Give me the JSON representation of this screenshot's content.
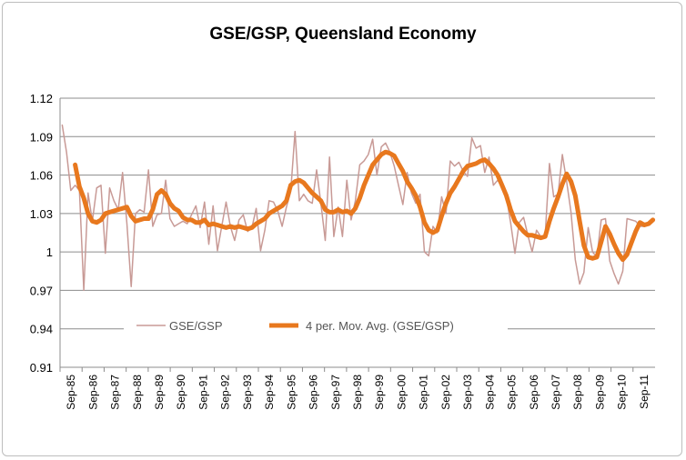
{
  "chart_data": {
    "type": "line",
    "title": "GSE/GSP, Queensland Economy",
    "xlabel": "",
    "ylabel": "",
    "ylim": [
      0.91,
      1.12
    ],
    "yticks": [
      "1.12",
      "1.09",
      "1.06",
      "1.03",
      "1",
      "0.97",
      "0.94",
      "0.91"
    ],
    "xticks": [
      "Sep-85",
      "Sep-86",
      "Sep-87",
      "Sep-88",
      "Sep-89",
      "Sep-90",
      "Sep-91",
      "Sep-92",
      "Sep-93",
      "Sep-94",
      "Sep-95",
      "Sep-96",
      "Sep-97",
      "Sep-98",
      "Sep-99",
      "Sep-00",
      "Sep-01",
      "Sep-02",
      "Sep-03",
      "Sep-04",
      "Sep-05",
      "Sep-06",
      "Sep-07",
      "Sep-08",
      "Sep-09",
      "Sep-10",
      "Sep-11"
    ],
    "grid": true,
    "legend_position": "bottom-center-inside",
    "series": [
      {
        "name": "GSE/GSP",
        "color": "#c89a96",
        "values": [
          1.099,
          1.078,
          1.048,
          1.052,
          1.048,
          0.97,
          1.046,
          1.024,
          1.05,
          1.052,
          0.999,
          1.05,
          1.04,
          1.033,
          1.062,
          1.022,
          0.973,
          1.03,
          1.033,
          1.031,
          1.064,
          1.02,
          1.029,
          1.03,
          1.056,
          1.026,
          1.02,
          1.022,
          1.024,
          1.022,
          1.029,
          1.036,
          1.019,
          1.039,
          1.006,
          1.036,
          1.001,
          1.02,
          1.039,
          1.02,
          1.009,
          1.025,
          1.029,
          1.016,
          1.019,
          1.034,
          1.001,
          1.017,
          1.04,
          1.039,
          1.032,
          1.02,
          1.035,
          1.047,
          1.094,
          1.04,
          1.045,
          1.04,
          1.038,
          1.064,
          1.038,
          1.009,
          1.074,
          1.012,
          1.035,
          1.012,
          1.056,
          1.025,
          1.04,
          1.068,
          1.071,
          1.076,
          1.088,
          1.06,
          1.082,
          1.085,
          1.078,
          1.067,
          1.052,
          1.037,
          1.062,
          1.046,
          1.038,
          1.045,
          1.0,
          0.997,
          1.02,
          1.015,
          1.043,
          1.03,
          1.071,
          1.067,
          1.07,
          1.063,
          1.059,
          1.089,
          1.081,
          1.083,
          1.062,
          1.074,
          1.052,
          1.056,
          1.051,
          1.043,
          1.023,
          0.999,
          1.023,
          1.027,
          1.013,
          1.0,
          1.017,
          1.012,
          1.013,
          1.069,
          1.043,
          1.045,
          1.076,
          1.055,
          1.031,
          0.994,
          0.975,
          0.984,
          1.019,
          1.0,
          0.996,
          1.025,
          1.026,
          0.993,
          0.983,
          0.975,
          0.985,
          1.026,
          1.025,
          1.024,
          1.02,
          1.02,
          1.021,
          1.024
        ]
      },
      {
        "name": "4 per. Mov. Avg. (GSE/GSP)",
        "color": "#e8781e",
        "values": [
          null,
          null,
          null,
          1.068,
          1.051,
          1.042,
          1.03,
          1.024,
          1.023,
          1.025,
          1.03,
          1.031,
          1.032,
          1.033,
          1.034,
          1.035,
          1.028,
          1.024,
          1.025,
          1.026,
          1.026,
          1.033,
          1.045,
          1.048,
          1.045,
          1.038,
          1.034,
          1.032,
          1.027,
          1.025,
          1.025,
          1.023,
          1.023,
          1.025,
          1.021,
          1.022,
          1.021,
          1.02,
          1.019,
          1.02,
          1.019,
          1.02,
          1.019,
          1.018,
          1.019,
          1.022,
          1.024,
          1.026,
          1.03,
          1.032,
          1.034,
          1.036,
          1.04,
          1.052,
          1.055,
          1.056,
          1.054,
          1.05,
          1.046,
          1.043,
          1.04,
          1.033,
          1.031,
          1.031,
          1.033,
          1.031,
          1.032,
          1.03,
          1.034,
          1.042,
          1.052,
          1.06,
          1.068,
          1.072,
          1.076,
          1.078,
          1.077,
          1.075,
          1.069,
          1.063,
          1.055,
          1.05,
          1.044,
          1.035,
          1.023,
          1.017,
          1.015,
          1.017,
          1.028,
          1.038,
          1.046,
          1.051,
          1.057,
          1.063,
          1.067,
          1.068,
          1.069,
          1.071,
          1.072,
          1.069,
          1.065,
          1.06,
          1.052,
          1.044,
          1.033,
          1.024,
          1.02,
          1.016,
          1.013,
          1.013,
          1.012,
          1.011,
          1.012,
          1.024,
          1.034,
          1.043,
          1.053,
          1.061,
          1.055,
          1.044,
          1.024,
          1.005,
          0.996,
          0.995,
          0.996,
          1.008,
          1.02,
          1.014,
          1.006,
          0.999,
          0.994,
          0.998,
          1.007,
          1.016,
          1.023,
          1.021,
          1.022,
          1.025
        ]
      }
    ]
  }
}
